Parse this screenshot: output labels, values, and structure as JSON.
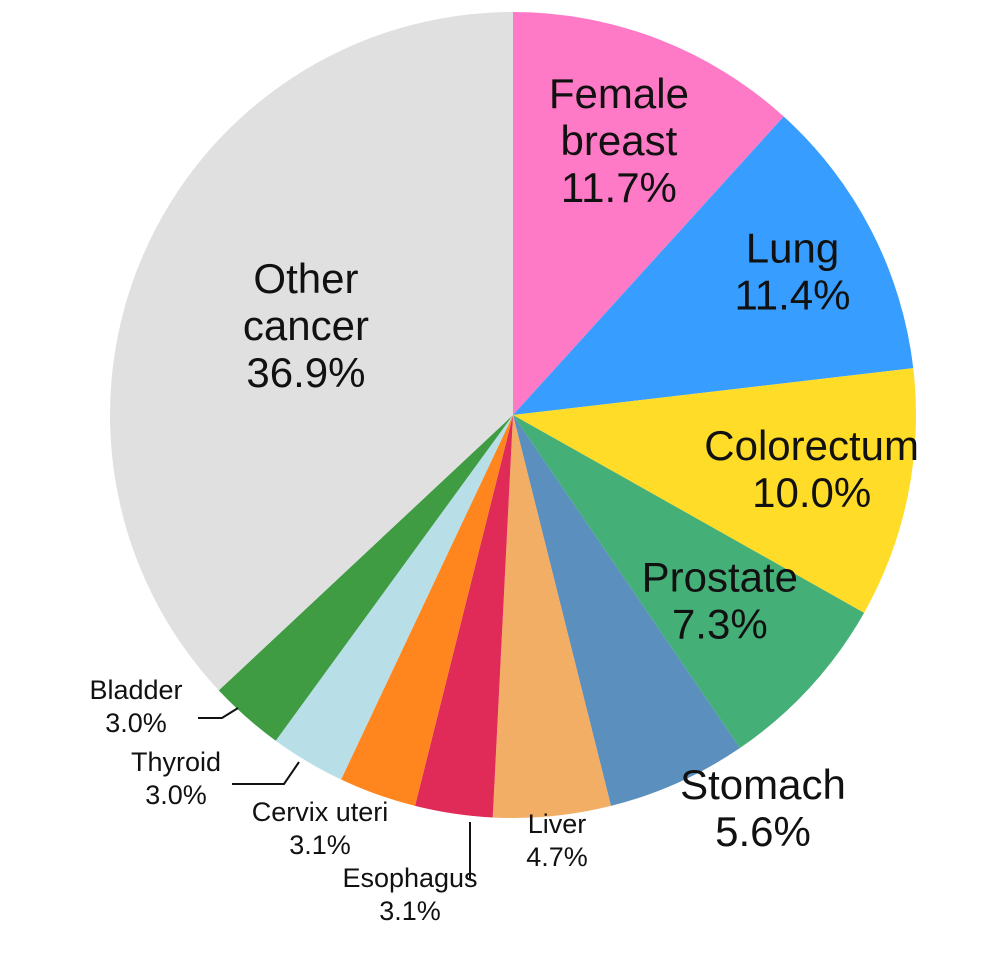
{
  "chart_data": {
    "type": "pie",
    "start_angle_deg": 0,
    "direction": "clockwise",
    "slices": [
      {
        "name": "Female breast",
        "label_lines": [
          "Female",
          "breast"
        ],
        "value": 11.7,
        "label": "11.7%",
        "color": "#FF7AC6"
      },
      {
        "name": "Lung",
        "label_lines": [
          "Lung"
        ],
        "value": 11.4,
        "label": "11.4%",
        "color": "#379EFF"
      },
      {
        "name": "Colorectum",
        "label_lines": [
          "Colorectum"
        ],
        "value": 10.0,
        "label": "10.0%",
        "color": "#FFDC28"
      },
      {
        "name": "Prostate",
        "label_lines": [
          "Prostate"
        ],
        "value": 7.3,
        "label": "7.3%",
        "color": "#45AF78"
      },
      {
        "name": "Stomach",
        "label_lines": [
          "Stomach"
        ],
        "value": 5.6,
        "label": "5.6%",
        "color": "#5A8FBE"
      },
      {
        "name": "Liver",
        "label_lines": [
          "Liver"
        ],
        "value": 4.7,
        "label": "4.7%",
        "color": "#F2AE64"
      },
      {
        "name": "Esophagus",
        "label_lines": [
          "Esophagus"
        ],
        "value": 3.1,
        "label": "3.1%",
        "color": "#E02A58"
      },
      {
        "name": "Cervix uteri",
        "label_lines": [
          "Cervix uteri"
        ],
        "value": 3.1,
        "label": "3.1%",
        "color": "#FF851E"
      },
      {
        "name": "Thyroid",
        "label_lines": [
          "Thyroid"
        ],
        "value": 3.0,
        "label": "3.0%",
        "color": "#B8DFE8"
      },
      {
        "name": "Bladder",
        "label_lines": [
          "Bladder"
        ],
        "value": 3.0,
        "label": "3.0%",
        "color": "#3F9C42"
      },
      {
        "name": "Other cancer",
        "label_lines": [
          "Other",
          "cancer"
        ],
        "value": 36.9,
        "label": "36.9%",
        "color": "#E0E0E0"
      }
    ],
    "legend": "none"
  }
}
